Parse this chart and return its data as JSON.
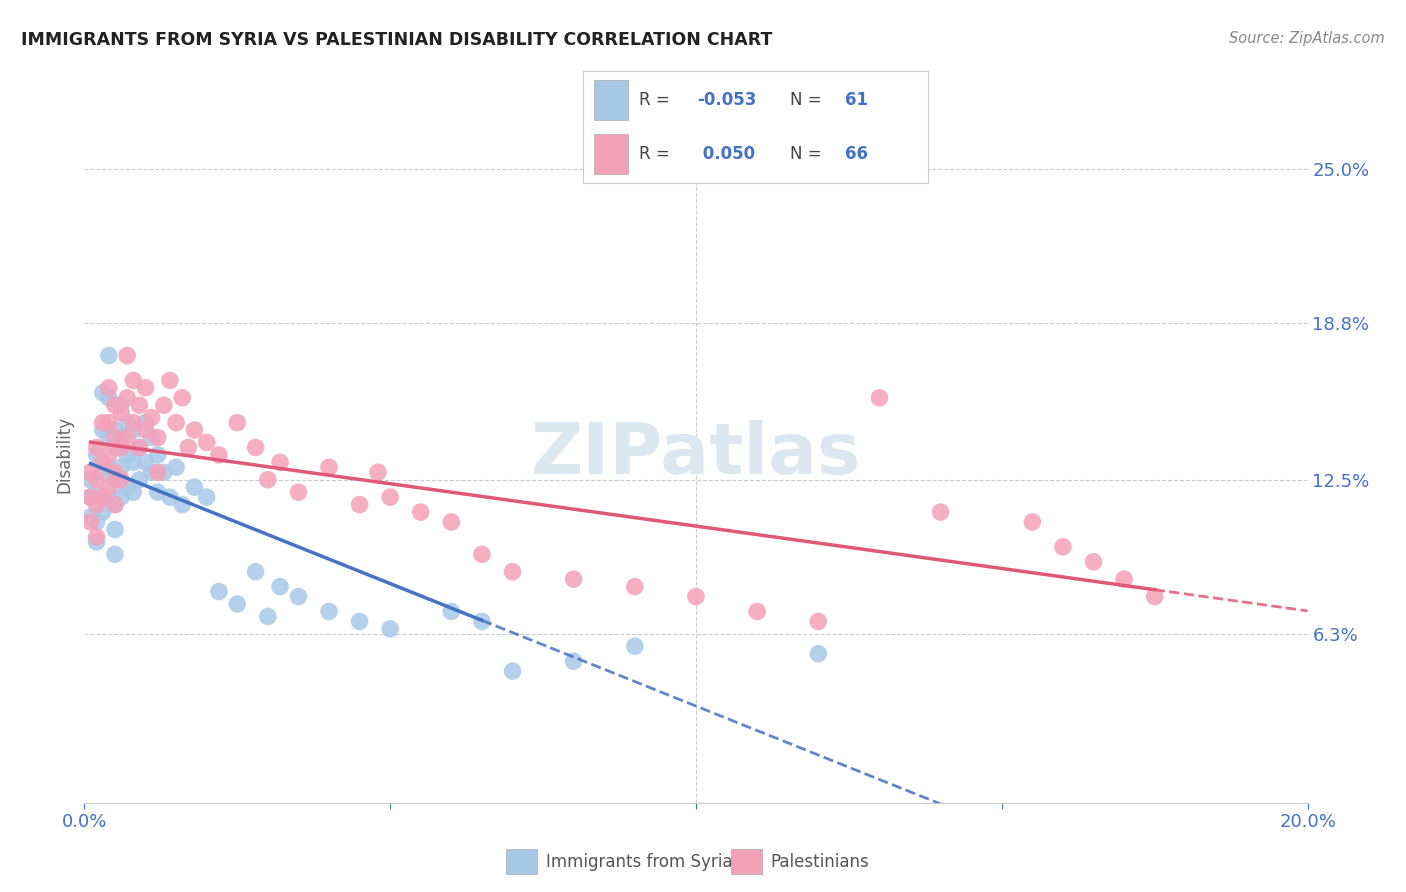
{
  "title": "IMMIGRANTS FROM SYRIA VS PALESTINIAN DISABILITY CORRELATION CHART",
  "source": "Source: ZipAtlas.com",
  "ylabel": "Disability",
  "ytick_labels": [
    "25.0%",
    "18.8%",
    "12.5%",
    "6.3%"
  ],
  "ytick_values": [
    0.25,
    0.188,
    0.125,
    0.063
  ],
  "xlim": [
    0.0,
    0.2
  ],
  "ylim": [
    -0.005,
    0.275
  ],
  "legend_syria": "Immigrants from Syria",
  "legend_palestinians": "Palestinians",
  "R_syria": "-0.053",
  "N_syria": "61",
  "R_palestinians": "0.050",
  "N_palestinians": "66",
  "color_syria": "#a8c8e8",
  "color_palestinians": "#f4a0b8",
  "color_blue": "#4472c4",
  "color_pink": "#e05878",
  "background_color": "#ffffff",
  "grid_color": "#cccccc",
  "watermark": "ZIPatlas",
  "watermark_color": "#dce8f0",
  "syria_x": [
    0.001,
    0.001,
    0.001,
    0.002,
    0.002,
    0.002,
    0.002,
    0.003,
    0.003,
    0.003,
    0.003,
    0.004,
    0.004,
    0.004,
    0.004,
    0.004,
    0.005,
    0.005,
    0.005,
    0.005,
    0.005,
    0.005,
    0.006,
    0.006,
    0.006,
    0.006,
    0.007,
    0.007,
    0.007,
    0.008,
    0.008,
    0.008,
    0.009,
    0.009,
    0.01,
    0.01,
    0.011,
    0.011,
    0.012,
    0.012,
    0.013,
    0.014,
    0.015,
    0.016,
    0.018,
    0.02,
    0.022,
    0.025,
    0.028,
    0.03,
    0.032,
    0.035,
    0.04,
    0.045,
    0.05,
    0.06,
    0.065,
    0.07,
    0.08,
    0.09,
    0.12
  ],
  "syria_y": [
    0.125,
    0.118,
    0.11,
    0.135,
    0.12,
    0.108,
    0.1,
    0.16,
    0.145,
    0.128,
    0.112,
    0.175,
    0.158,
    0.142,
    0.13,
    0.118,
    0.145,
    0.138,
    0.125,
    0.115,
    0.105,
    0.095,
    0.155,
    0.142,
    0.13,
    0.118,
    0.148,
    0.135,
    0.122,
    0.145,
    0.132,
    0.12,
    0.138,
    0.125,
    0.148,
    0.132,
    0.142,
    0.128,
    0.135,
    0.12,
    0.128,
    0.118,
    0.13,
    0.115,
    0.122,
    0.118,
    0.08,
    0.075,
    0.088,
    0.07,
    0.082,
    0.078,
    0.072,
    0.068,
    0.065,
    0.072,
    0.068,
    0.048,
    0.052,
    0.058,
    0.055
  ],
  "palestinians_x": [
    0.001,
    0.001,
    0.001,
    0.002,
    0.002,
    0.002,
    0.002,
    0.003,
    0.003,
    0.003,
    0.004,
    0.004,
    0.004,
    0.004,
    0.005,
    0.005,
    0.005,
    0.005,
    0.006,
    0.006,
    0.006,
    0.007,
    0.007,
    0.007,
    0.008,
    0.008,
    0.009,
    0.009,
    0.01,
    0.01,
    0.011,
    0.012,
    0.012,
    0.013,
    0.014,
    0.015,
    0.016,
    0.017,
    0.018,
    0.02,
    0.022,
    0.025,
    0.028,
    0.03,
    0.032,
    0.035,
    0.04,
    0.045,
    0.048,
    0.05,
    0.055,
    0.06,
    0.065,
    0.07,
    0.08,
    0.09,
    0.1,
    0.11,
    0.12,
    0.13,
    0.14,
    0.155,
    0.16,
    0.165,
    0.17,
    0.175
  ],
  "palestinians_y": [
    0.128,
    0.118,
    0.108,
    0.138,
    0.125,
    0.115,
    0.102,
    0.148,
    0.132,
    0.118,
    0.162,
    0.148,
    0.135,
    0.122,
    0.155,
    0.142,
    0.128,
    0.115,
    0.152,
    0.138,
    0.125,
    0.175,
    0.158,
    0.142,
    0.165,
    0.148,
    0.155,
    0.138,
    0.162,
    0.145,
    0.15,
    0.142,
    0.128,
    0.155,
    0.165,
    0.148,
    0.158,
    0.138,
    0.145,
    0.14,
    0.135,
    0.148,
    0.138,
    0.125,
    0.132,
    0.12,
    0.13,
    0.115,
    0.128,
    0.118,
    0.112,
    0.108,
    0.095,
    0.088,
    0.085,
    0.082,
    0.078,
    0.072,
    0.068,
    0.158,
    0.112,
    0.108,
    0.098,
    0.092,
    0.085,
    0.078
  ]
}
